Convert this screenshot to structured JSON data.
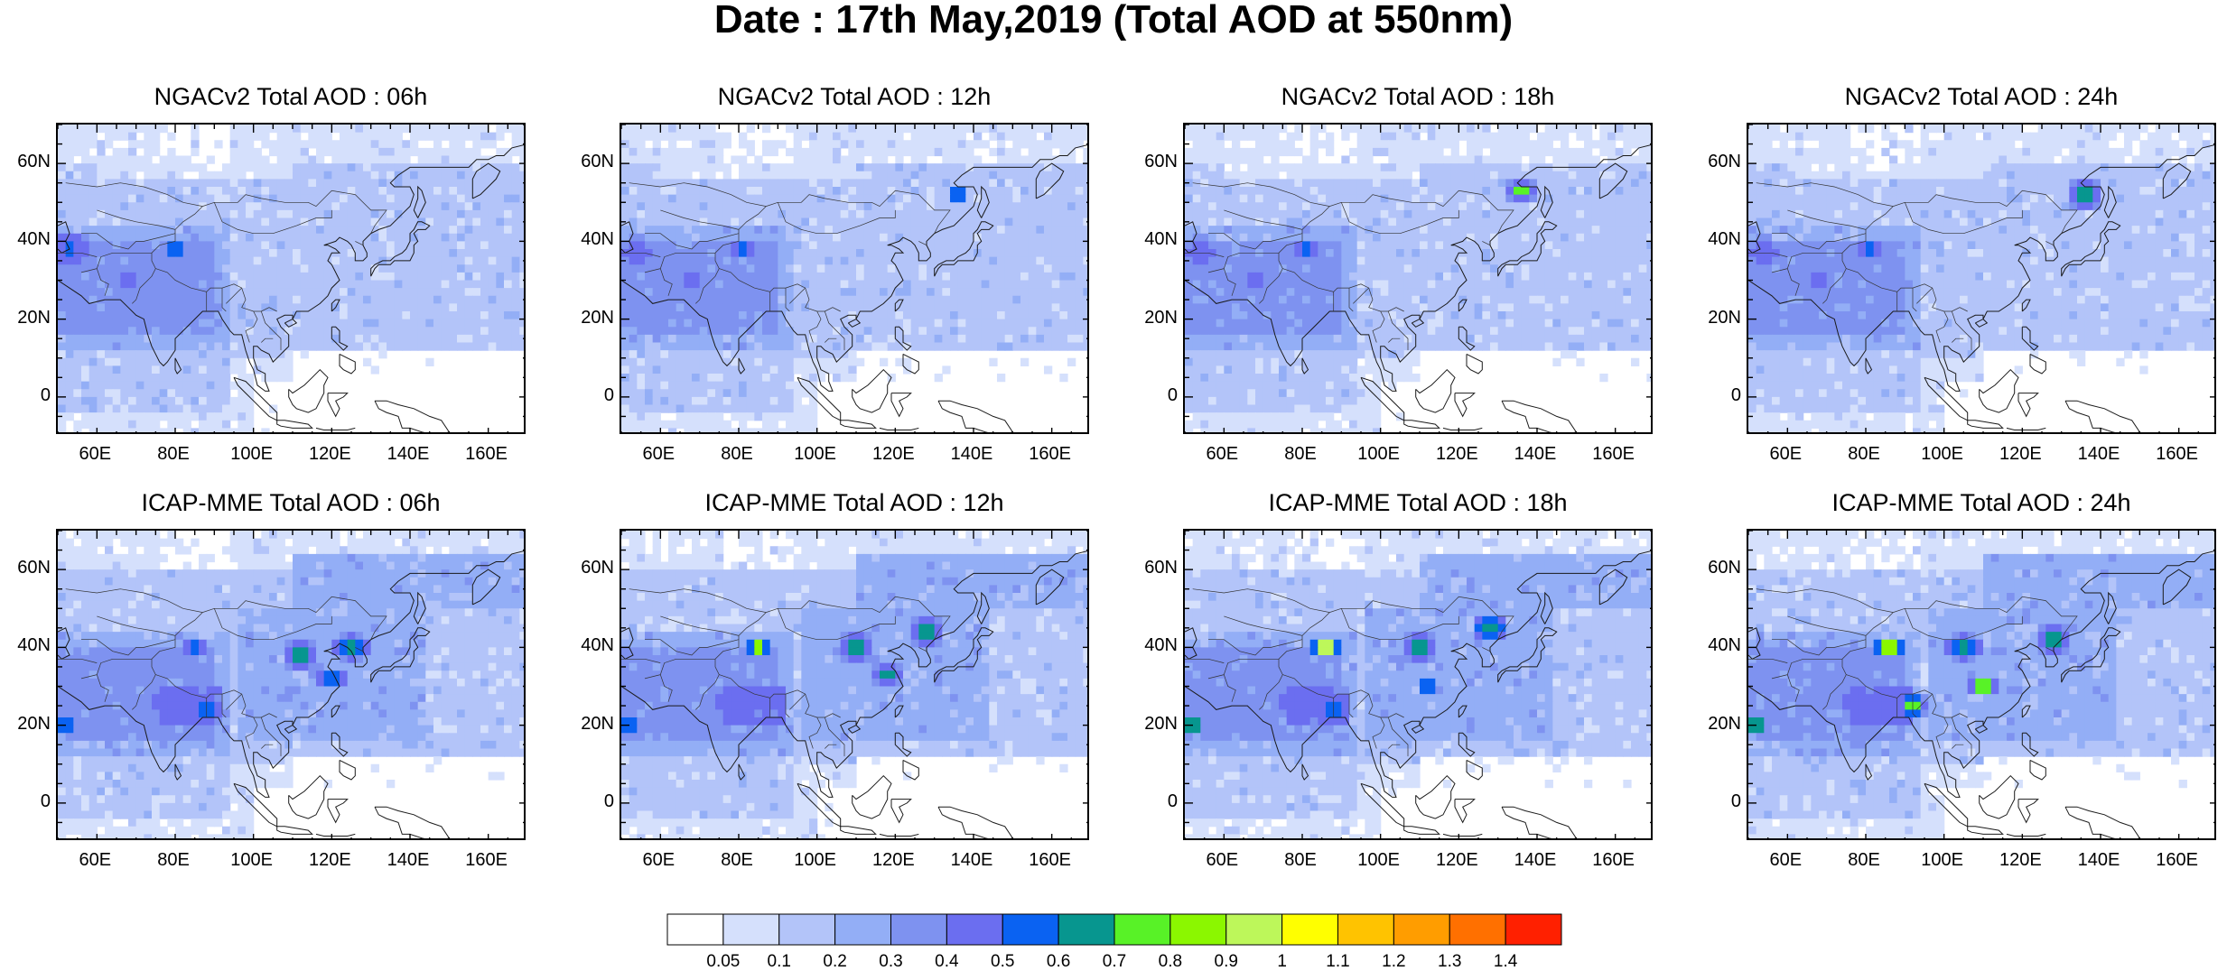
{
  "title": "Date : 17th May,2019 (Total AOD at 550nm)",
  "panels": [
    {
      "title": "NGACv2 Total AOD : 06h",
      "model": "ngac",
      "hour": 6
    },
    {
      "title": "NGACv2 Total AOD : 12h",
      "model": "ngac",
      "hour": 12
    },
    {
      "title": "NGACv2 Total AOD : 18h",
      "model": "ngac",
      "hour": 18
    },
    {
      "title": "NGACv2 Total AOD : 24h",
      "model": "ngac",
      "hour": 24
    },
    {
      "title": "ICAP-MME Total AOD : 06h",
      "model": "icap",
      "hour": 6
    },
    {
      "title": "ICAP-MME Total AOD : 12h",
      "model": "icap",
      "hour": 12
    },
    {
      "title": "ICAP-MME Total AOD : 18h",
      "model": "icap",
      "hour": 18
    },
    {
      "title": "ICAP-MME Total AOD : 24h",
      "model": "icap",
      "hour": 24
    }
  ],
  "lat_ticks": [
    "60N",
    "40N",
    "20N",
    "0"
  ],
  "lat_values": [
    60,
    40,
    20,
    0
  ],
  "lon_ticks": [
    "60E",
    "80E",
    "100E",
    "120E",
    "140E",
    "160E"
  ],
  "lon_values": [
    60,
    80,
    100,
    120,
    140,
    160
  ],
  "extent": {
    "lon_min": 50,
    "lon_max": 170,
    "lat_min": -10,
    "lat_max": 70
  },
  "colorbar": {
    "labels": [
      "0.05",
      "0.1",
      "0.2",
      "0.3",
      "0.4",
      "0.5",
      "0.6",
      "0.7",
      "0.8",
      "0.9",
      "1",
      "1.1",
      "1.2",
      "1.3",
      "1.4"
    ],
    "colors": [
      "#ffffff",
      "#d5e0fc",
      "#b3c4f9",
      "#93aef6",
      "#7e92f0",
      "#6b6ef0",
      "#0a62f2",
      "#07968f",
      "#58f227",
      "#8bf700",
      "#bdf75a",
      "#ffff00",
      "#ffc300",
      "#ff9d00",
      "#ff7000",
      "#ff2000"
    ]
  },
  "hotspots": {
    "ngac": {
      "6": [
        {
          "lon": 53,
          "lat": 38,
          "r": 6,
          "level": 6
        },
        {
          "lon": 68,
          "lat": 30,
          "r": 5,
          "level": 5
        },
        {
          "lon": 80,
          "lat": 38,
          "r": 3,
          "level": 8
        },
        {
          "lon": 80,
          "lat": 38,
          "r": 1.5,
          "level": 10
        }
      ],
      "12": [
        {
          "lon": 54,
          "lat": 37,
          "r": 6,
          "level": 5
        },
        {
          "lon": 68,
          "lat": 30,
          "r": 5,
          "level": 5
        },
        {
          "lon": 81,
          "lat": 38,
          "r": 3,
          "level": 8
        },
        {
          "lon": 136,
          "lat": 52,
          "r": 3,
          "level": 8
        },
        {
          "lon": 136,
          "lat": 52,
          "r": 1.5,
          "level": 10
        }
      ],
      "18": [
        {
          "lon": 54,
          "lat": 37,
          "r": 6,
          "level": 5
        },
        {
          "lon": 68,
          "lat": 30,
          "r": 5,
          "level": 5
        },
        {
          "lon": 81,
          "lat": 38,
          "r": 3,
          "level": 8
        },
        {
          "lon": 136,
          "lat": 53,
          "r": 4,
          "level": 8
        },
        {
          "lon": 136,
          "lat": 53,
          "r": 2,
          "level": 11
        }
      ],
      "24": [
        {
          "lon": 54,
          "lat": 37,
          "r": 6,
          "level": 5
        },
        {
          "lon": 68,
          "lat": 30,
          "r": 5,
          "level": 5
        },
        {
          "lon": 81,
          "lat": 38,
          "r": 3,
          "level": 8
        },
        {
          "lon": 136,
          "lat": 52,
          "r": 5,
          "level": 8
        },
        {
          "lon": 136,
          "lat": 52,
          "r": 3,
          "level": 11
        },
        {
          "lon": 136,
          "lat": 51,
          "r": 1.5,
          "level": 14
        }
      ]
    },
    "icap": {
      "6": [
        {
          "lon": 52,
          "lat": 20,
          "r": 3,
          "level": 8
        },
        {
          "lon": 78,
          "lat": 26,
          "r": 6,
          "level": 6
        },
        {
          "lon": 88,
          "lat": 24,
          "r": 4,
          "level": 7
        },
        {
          "lon": 85,
          "lat": 40,
          "r": 3,
          "level": 8
        },
        {
          "lon": 112,
          "lat": 38,
          "r": 5,
          "level": 8
        },
        {
          "lon": 125,
          "lat": 40,
          "r": 5,
          "level": 8
        },
        {
          "lon": 120,
          "lat": 32,
          "r": 4,
          "level": 8
        }
      ],
      "12": [
        {
          "lon": 52,
          "lat": 20,
          "r": 3,
          "level": 8
        },
        {
          "lon": 78,
          "lat": 26,
          "r": 6,
          "level": 6
        },
        {
          "lon": 85,
          "lat": 40,
          "r": 3,
          "level": 12
        },
        {
          "lon": 110,
          "lat": 40,
          "r": 5,
          "level": 8
        },
        {
          "lon": 128,
          "lat": 44,
          "r": 5,
          "level": 8
        },
        {
          "lon": 118,
          "lat": 33,
          "r": 4,
          "level": 8
        }
      ],
      "18": [
        {
          "lon": 52,
          "lat": 20,
          "r": 3,
          "level": 10
        },
        {
          "lon": 78,
          "lat": 26,
          "r": 6,
          "level": 6
        },
        {
          "lon": 88,
          "lat": 24,
          "r": 4,
          "level": 8
        },
        {
          "lon": 86,
          "lat": 40,
          "r": 4,
          "level": 14
        },
        {
          "lon": 110,
          "lat": 40,
          "r": 5,
          "level": 8
        },
        {
          "lon": 128,
          "lat": 45,
          "r": 5,
          "level": 8
        },
        {
          "lon": 112,
          "lat": 30,
          "r": 3,
          "level": 9
        }
      ],
      "24": [
        {
          "lon": 52,
          "lat": 20,
          "r": 3,
          "level": 10
        },
        {
          "lon": 78,
          "lat": 26,
          "r": 6,
          "level": 6
        },
        {
          "lon": 92,
          "lat": 25,
          "r": 4,
          "level": 9
        },
        {
          "lon": 86,
          "lat": 40,
          "r": 4,
          "level": 13
        },
        {
          "lon": 105,
          "lat": 40,
          "r": 5,
          "level": 8
        },
        {
          "lon": 128,
          "lat": 42,
          "r": 5,
          "level": 8
        },
        {
          "lon": 110,
          "lat": 30,
          "r": 4,
          "level": 11
        }
      ]
    }
  }
}
